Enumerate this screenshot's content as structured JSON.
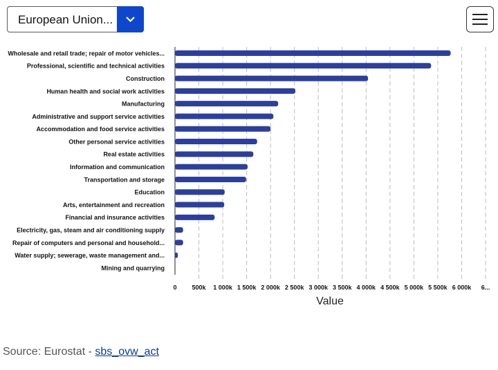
{
  "dropdown": {
    "label": "European Union..."
  },
  "chart_data": {
    "type": "bar",
    "orientation": "horizontal",
    "categories": [
      "Wholesale and retail trade; repair of motor vehicles...",
      "Professional, scientific and technical activities",
      "Construction",
      "Human health and social work activities",
      "Manufacturing",
      "Administrative and support service activities",
      "Accommodation and food service activities",
      "Other personal service activities",
      "Real estate activities",
      "Information and communication",
      "Transportation and storage",
      "Education",
      "Arts, entertainment and recreation",
      "Financial and insurance activities",
      "Electricity, gas, steam and air conditioning supply",
      "Repair of computers and personal and household...",
      "Water supply; sewerage, waste management and...",
      "Mining and quarrying"
    ],
    "values": [
      5770000,
      5360000,
      4040000,
      2520000,
      2160000,
      2060000,
      2000000,
      1720000,
      1640000,
      1520000,
      1490000,
      1040000,
      1030000,
      830000,
      170000,
      170000,
      60000,
      0
    ],
    "color": "#2b3f9e",
    "x_label": "Value",
    "xlim": [
      0,
      6500000
    ],
    "xticks": [
      0,
      {
        "value": 500000,
        "label": "500k"
      },
      {
        "value": 1000000,
        "label": "1 000k"
      },
      {
        "value": 1500000,
        "label": "1 500k"
      },
      {
        "value": 2000000,
        "label": "2 000k"
      },
      {
        "value": 2500000,
        "label": "2 500k"
      },
      {
        "value": 3000000,
        "label": "3 000k"
      },
      {
        "value": 3500000,
        "label": "3 500k"
      },
      {
        "value": 4000000,
        "label": "4 000k"
      },
      {
        "value": 4500000,
        "label": "4 500k"
      },
      {
        "value": 5000000,
        "label": "5 000k"
      },
      {
        "value": 5500000,
        "label": "5 500k"
      },
      {
        "value": 6000000,
        "label": "6 000k"
      },
      {
        "value": 6500000,
        "label": "6..."
      }
    ],
    "grid": true
  },
  "source": {
    "text": "Source: Eurostat -",
    "link": "sbs_ovw_act"
  }
}
